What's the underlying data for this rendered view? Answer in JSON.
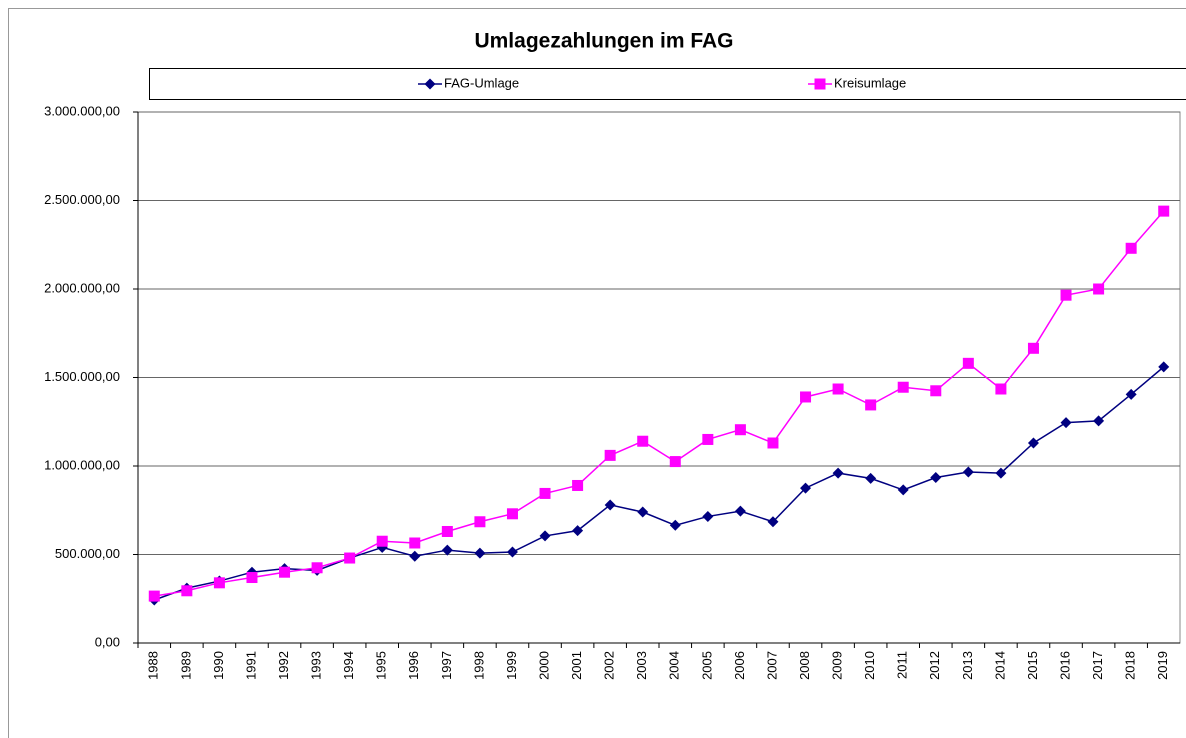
{
  "chart_data": {
    "type": "line",
    "title": "Umlagezahlungen  im FAG",
    "categories": [
      "1988",
      "1989",
      "1990",
      "1991",
      "1992",
      "1993",
      "1994",
      "1995",
      "1996",
      "1997",
      "1998",
      "1999",
      "2000",
      "2001",
      "2002",
      "2003",
      "2004",
      "2005",
      "2006",
      "2007",
      "2008",
      "2009",
      "2010",
      "2011",
      "2012",
      "2013",
      "2014",
      "2015",
      "2016",
      "2017",
      "2018",
      "2019"
    ],
    "series": [
      {
        "name": "FAG-Umlage",
        "color": "#000080",
        "marker": "diamond",
        "values": [
          243000,
          310000,
          350000,
          400000,
          420000,
          410000,
          480000,
          540000,
          490000,
          525000,
          508000,
          514000,
          605000,
          635000,
          780000,
          740000,
          665000,
          715000,
          745000,
          685000,
          875000,
          960000,
          930000,
          865000,
          935000,
          966000,
          960000,
          1130000,
          1245000,
          1255000,
          1405000,
          1560000
        ]
      },
      {
        "name": "Kreisumlage",
        "color": "#ff00ff",
        "marker": "square",
        "values": [
          265000,
          295000,
          340000,
          370000,
          400000,
          425000,
          480000,
          575000,
          565000,
          630000,
          685000,
          730000,
          845000,
          890000,
          1060000,
          1140000,
          1025000,
          1150000,
          1205000,
          1130000,
          1390000,
          1435000,
          1345000,
          1445000,
          1425000,
          1580000,
          1435000,
          1665000,
          1965000,
          2000000,
          2230000,
          2440000
        ]
      }
    ],
    "ylim": [
      0,
      3000000
    ],
    "yticks": [
      {
        "value": 0,
        "label": "0,00"
      },
      {
        "value": 500000,
        "label": "500.000,00"
      },
      {
        "value": 1000000,
        "label": "1.000.000,00"
      },
      {
        "value": 1500000,
        "label": "1.500.000,00"
      },
      {
        "value": 2000000,
        "label": "2.000.000,00"
      },
      {
        "value": 2500000,
        "label": "2.500.000,00"
      },
      {
        "value": 3000000,
        "label": "3.000.000,00"
      }
    ],
    "grid": true,
    "legend": "top"
  }
}
